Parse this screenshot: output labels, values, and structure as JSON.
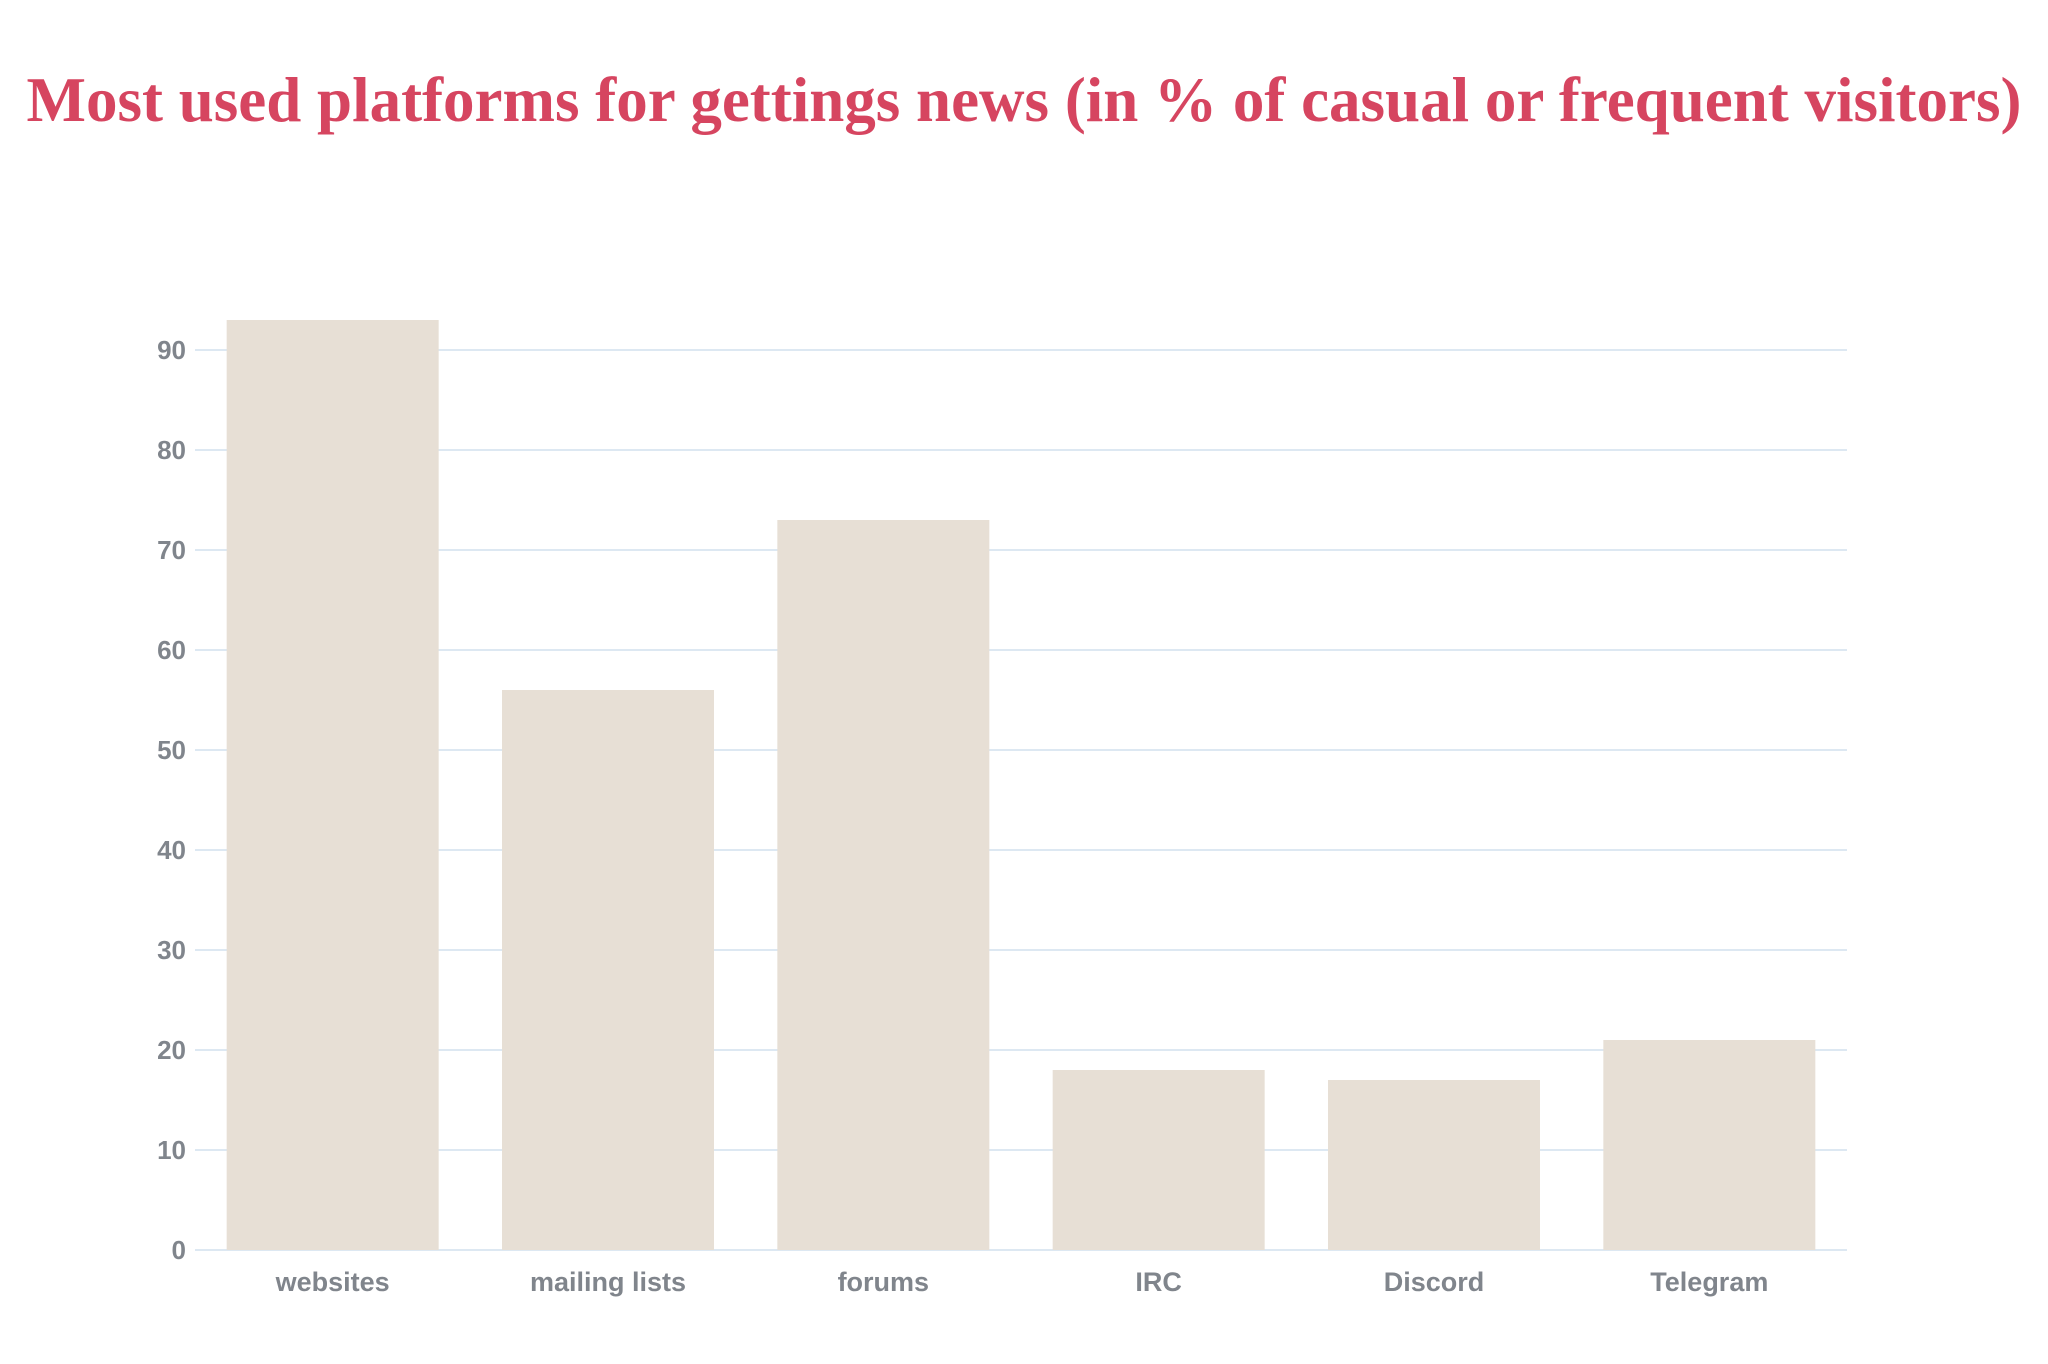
{
  "chart_data": {
    "type": "bar",
    "title": "Most used platforms for gettings news (in % of casual or frequent visitors)",
    "categories": [
      "websites",
      "mailing lists",
      "forums",
      "IRC",
      "Discord",
      "Telegram"
    ],
    "values": [
      93,
      56,
      73,
      18,
      17,
      21
    ],
    "xlabel": "",
    "ylabel": "",
    "ylim": [
      0,
      90
    ],
    "yticks": [
      0,
      10,
      20,
      30,
      40,
      50,
      60,
      70,
      80,
      90
    ],
    "grid": true,
    "legend": "none",
    "colors": {
      "title": "#d64560",
      "bar": "#e7dfd5",
      "grid": "#dde8f2",
      "axis_text": "#80858c"
    }
  }
}
